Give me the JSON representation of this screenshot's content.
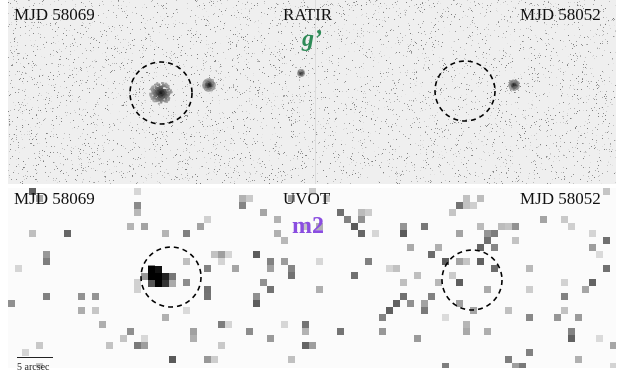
{
  "ratir": {
    "left_date": "MJD 58069",
    "instrument": "RATIR",
    "right_date": "MJD 58052",
    "filter": "g’",
    "filter_color": "#2e8b57"
  },
  "uvot": {
    "left_date": "MJD 58069",
    "instrument": "UVOT",
    "right_date": "MJD 58052",
    "filter": "m2",
    "filter_color": "#8a4de0"
  },
  "scale_bar": {
    "label": "5 arcsec"
  }
}
